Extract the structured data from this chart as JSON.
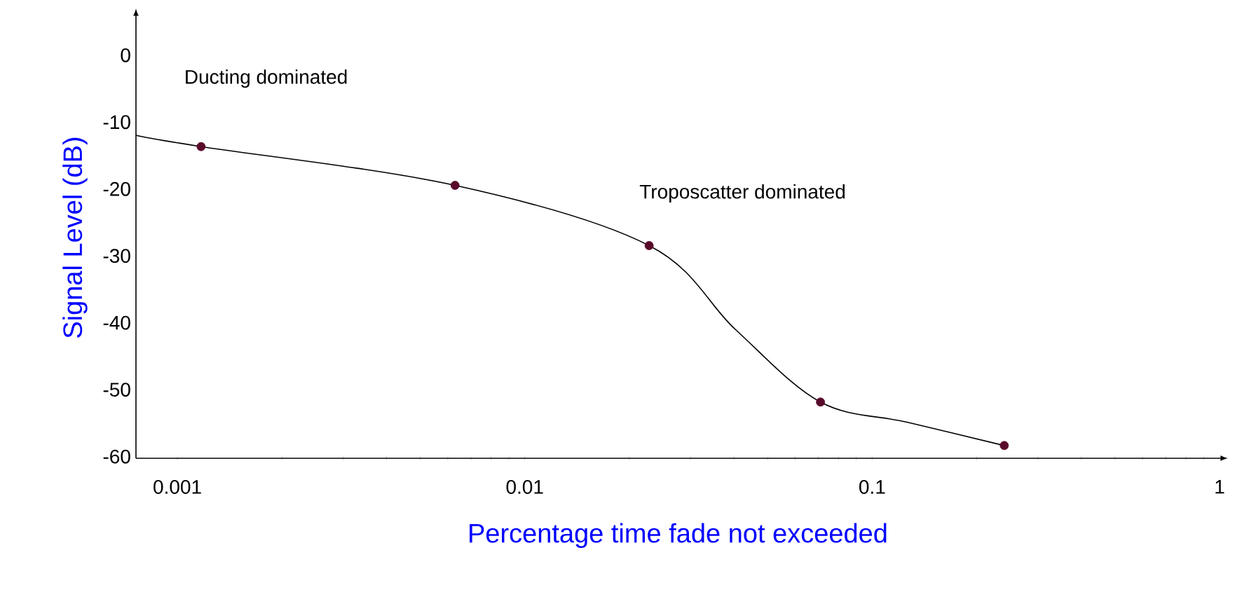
{
  "chart_data": {
    "type": "line",
    "xlabel": "Percentage time fade not exceeded",
    "ylabel": "Signal Level (dB)",
    "log": "x",
    "xlim": [
      0.00076,
      1
    ],
    "xticks": [
      0.001,
      0.01,
      0.1,
      1
    ],
    "ylim": [
      -60,
      6
    ],
    "yticks": [
      0,
      -10,
      -20,
      -30,
      -40,
      -50,
      -60
    ],
    "grid": false,
    "annotations": [
      "Ducting dominated",
      "Troposcatter dominated"
    ],
    "series": [
      {
        "color": "#000000",
        "line_style": "solid",
        "marker": "none",
        "x": [
          0.00076,
          0.00117,
          0.0063,
          0.0228,
          0.0405,
          0.071,
          0.126,
          0.24
        ],
        "values": [
          -11.7,
          -13.4,
          -19.2,
          -28.2,
          -40.8,
          -51.6,
          -54.6,
          -58.1
        ]
      },
      {
        "type": "scatter",
        "color": "#5a0a2a",
        "marker": "circle",
        "x": [
          0.00117,
          0.0063,
          0.0228,
          0.071,
          0.24
        ],
        "values": [
          -13.4,
          -19.2,
          -28.2,
          -51.6,
          -58.1
        ]
      }
    ]
  }
}
